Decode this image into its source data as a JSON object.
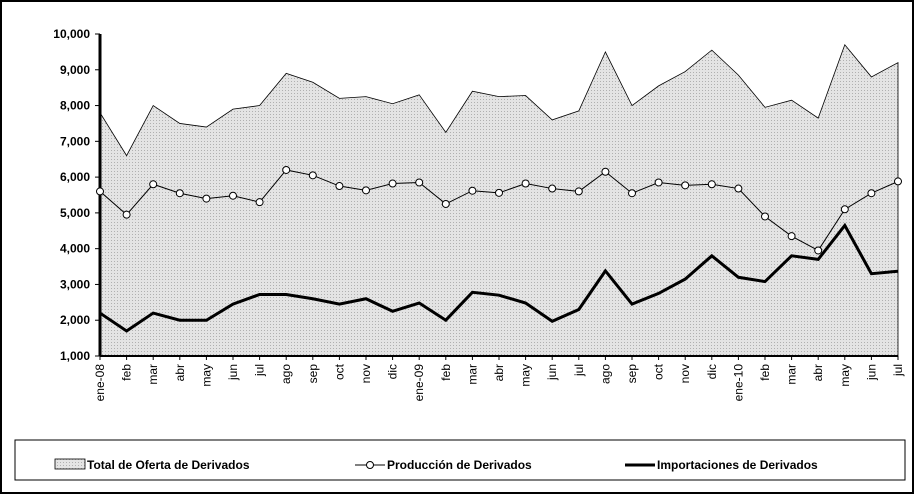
{
  "chart_data": {
    "type": "line",
    "categories": [
      "ene-08",
      "feb",
      "mar",
      "abr",
      "may",
      "jun",
      "jul",
      "ago",
      "sep",
      "oct",
      "nov",
      "dic",
      "ene-09",
      "feb",
      "mar",
      "abr",
      "may",
      "jun",
      "jul",
      "ago",
      "sep",
      "oct",
      "nov",
      "dic",
      "ene-10",
      "feb",
      "mar",
      "abr",
      "may",
      "jun",
      "jul"
    ],
    "series": [
      {
        "name": "Total de Oferta de Derivados",
        "style": "area",
        "color": "#dcdcdc",
        "values": [
          7800,
          6600,
          8000,
          7500,
          7400,
          7900,
          8000,
          8900,
          8650,
          8200,
          8250,
          8050,
          8300,
          7250,
          8400,
          8250,
          8280,
          7600,
          7850,
          9500,
          8000,
          8550,
          8950,
          9550,
          8850,
          7950,
          8150,
          7650,
          9700,
          8800,
          9200
        ]
      },
      {
        "name": "Producción de Derivados",
        "style": "line-marker",
        "color": "#000000",
        "values": [
          5600,
          4950,
          5800,
          5550,
          5400,
          5480,
          5300,
          6200,
          6050,
          5750,
          5630,
          5820,
          5850,
          5250,
          5620,
          5560,
          5820,
          5680,
          5600,
          6150,
          5550,
          5850,
          5770,
          5800,
          5680,
          4900,
          4350,
          3950,
          5100,
          5550,
          5880
        ]
      },
      {
        "name": "Importaciones de Derivados",
        "style": "thick-line",
        "color": "#000000",
        "values": [
          2200,
          1700,
          2200,
          2000,
          2000,
          2450,
          2720,
          2720,
          2600,
          2450,
          2600,
          2250,
          2480,
          2000,
          2780,
          2700,
          2480,
          1970,
          2300,
          3380,
          2450,
          2750,
          3150,
          3800,
          3200,
          3080,
          3800,
          3700,
          4650,
          3300,
          3370
        ]
      }
    ],
    "ylim": [
      1000,
      10000
    ],
    "yticks": [
      {
        "value": 1000,
        "label": "1,000"
      },
      {
        "value": 2000,
        "label": "2,000"
      },
      {
        "value": 3000,
        "label": "3,000"
      },
      {
        "value": 4000,
        "label": "4,000"
      },
      {
        "value": 5000,
        "label": "5,000"
      },
      {
        "value": 6000,
        "label": "6,000"
      },
      {
        "value": 7000,
        "label": "7,000"
      },
      {
        "value": 8000,
        "label": "8,000"
      },
      {
        "value": 9000,
        "label": "9,000"
      },
      {
        "value": 10000,
        "label": "10,000"
      }
    ],
    "legend": "bottom"
  }
}
